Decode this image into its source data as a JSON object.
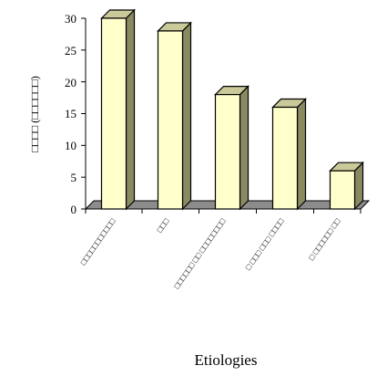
{
  "chart_data": {
    "type": "bar",
    "title": "",
    "xlabel": "Etiologies",
    "ylabel": "□□□□ (□□□□□□)",
    "ylim": [
      0,
      30
    ],
    "yticks": [
      "0",
      "5",
      "10",
      "15",
      "20",
      "25",
      "30"
    ],
    "categories": [
      "□□□□□□□□□□□",
      "□□□",
      "□□□□□□ □□ □□□□□□□□",
      "□ □□□ □□□ □□□□",
      "□ □□□□□□ □□"
    ],
    "values": [
      30,
      28,
      18,
      16,
      6
    ],
    "grid": false,
    "legend": "none",
    "colors": {
      "bar_front": "#ffffcc",
      "bar_side": "#8a8a62",
      "bar_top": "#c9c99a",
      "floor": "#8c8c8c",
      "stroke": "#000000"
    }
  }
}
